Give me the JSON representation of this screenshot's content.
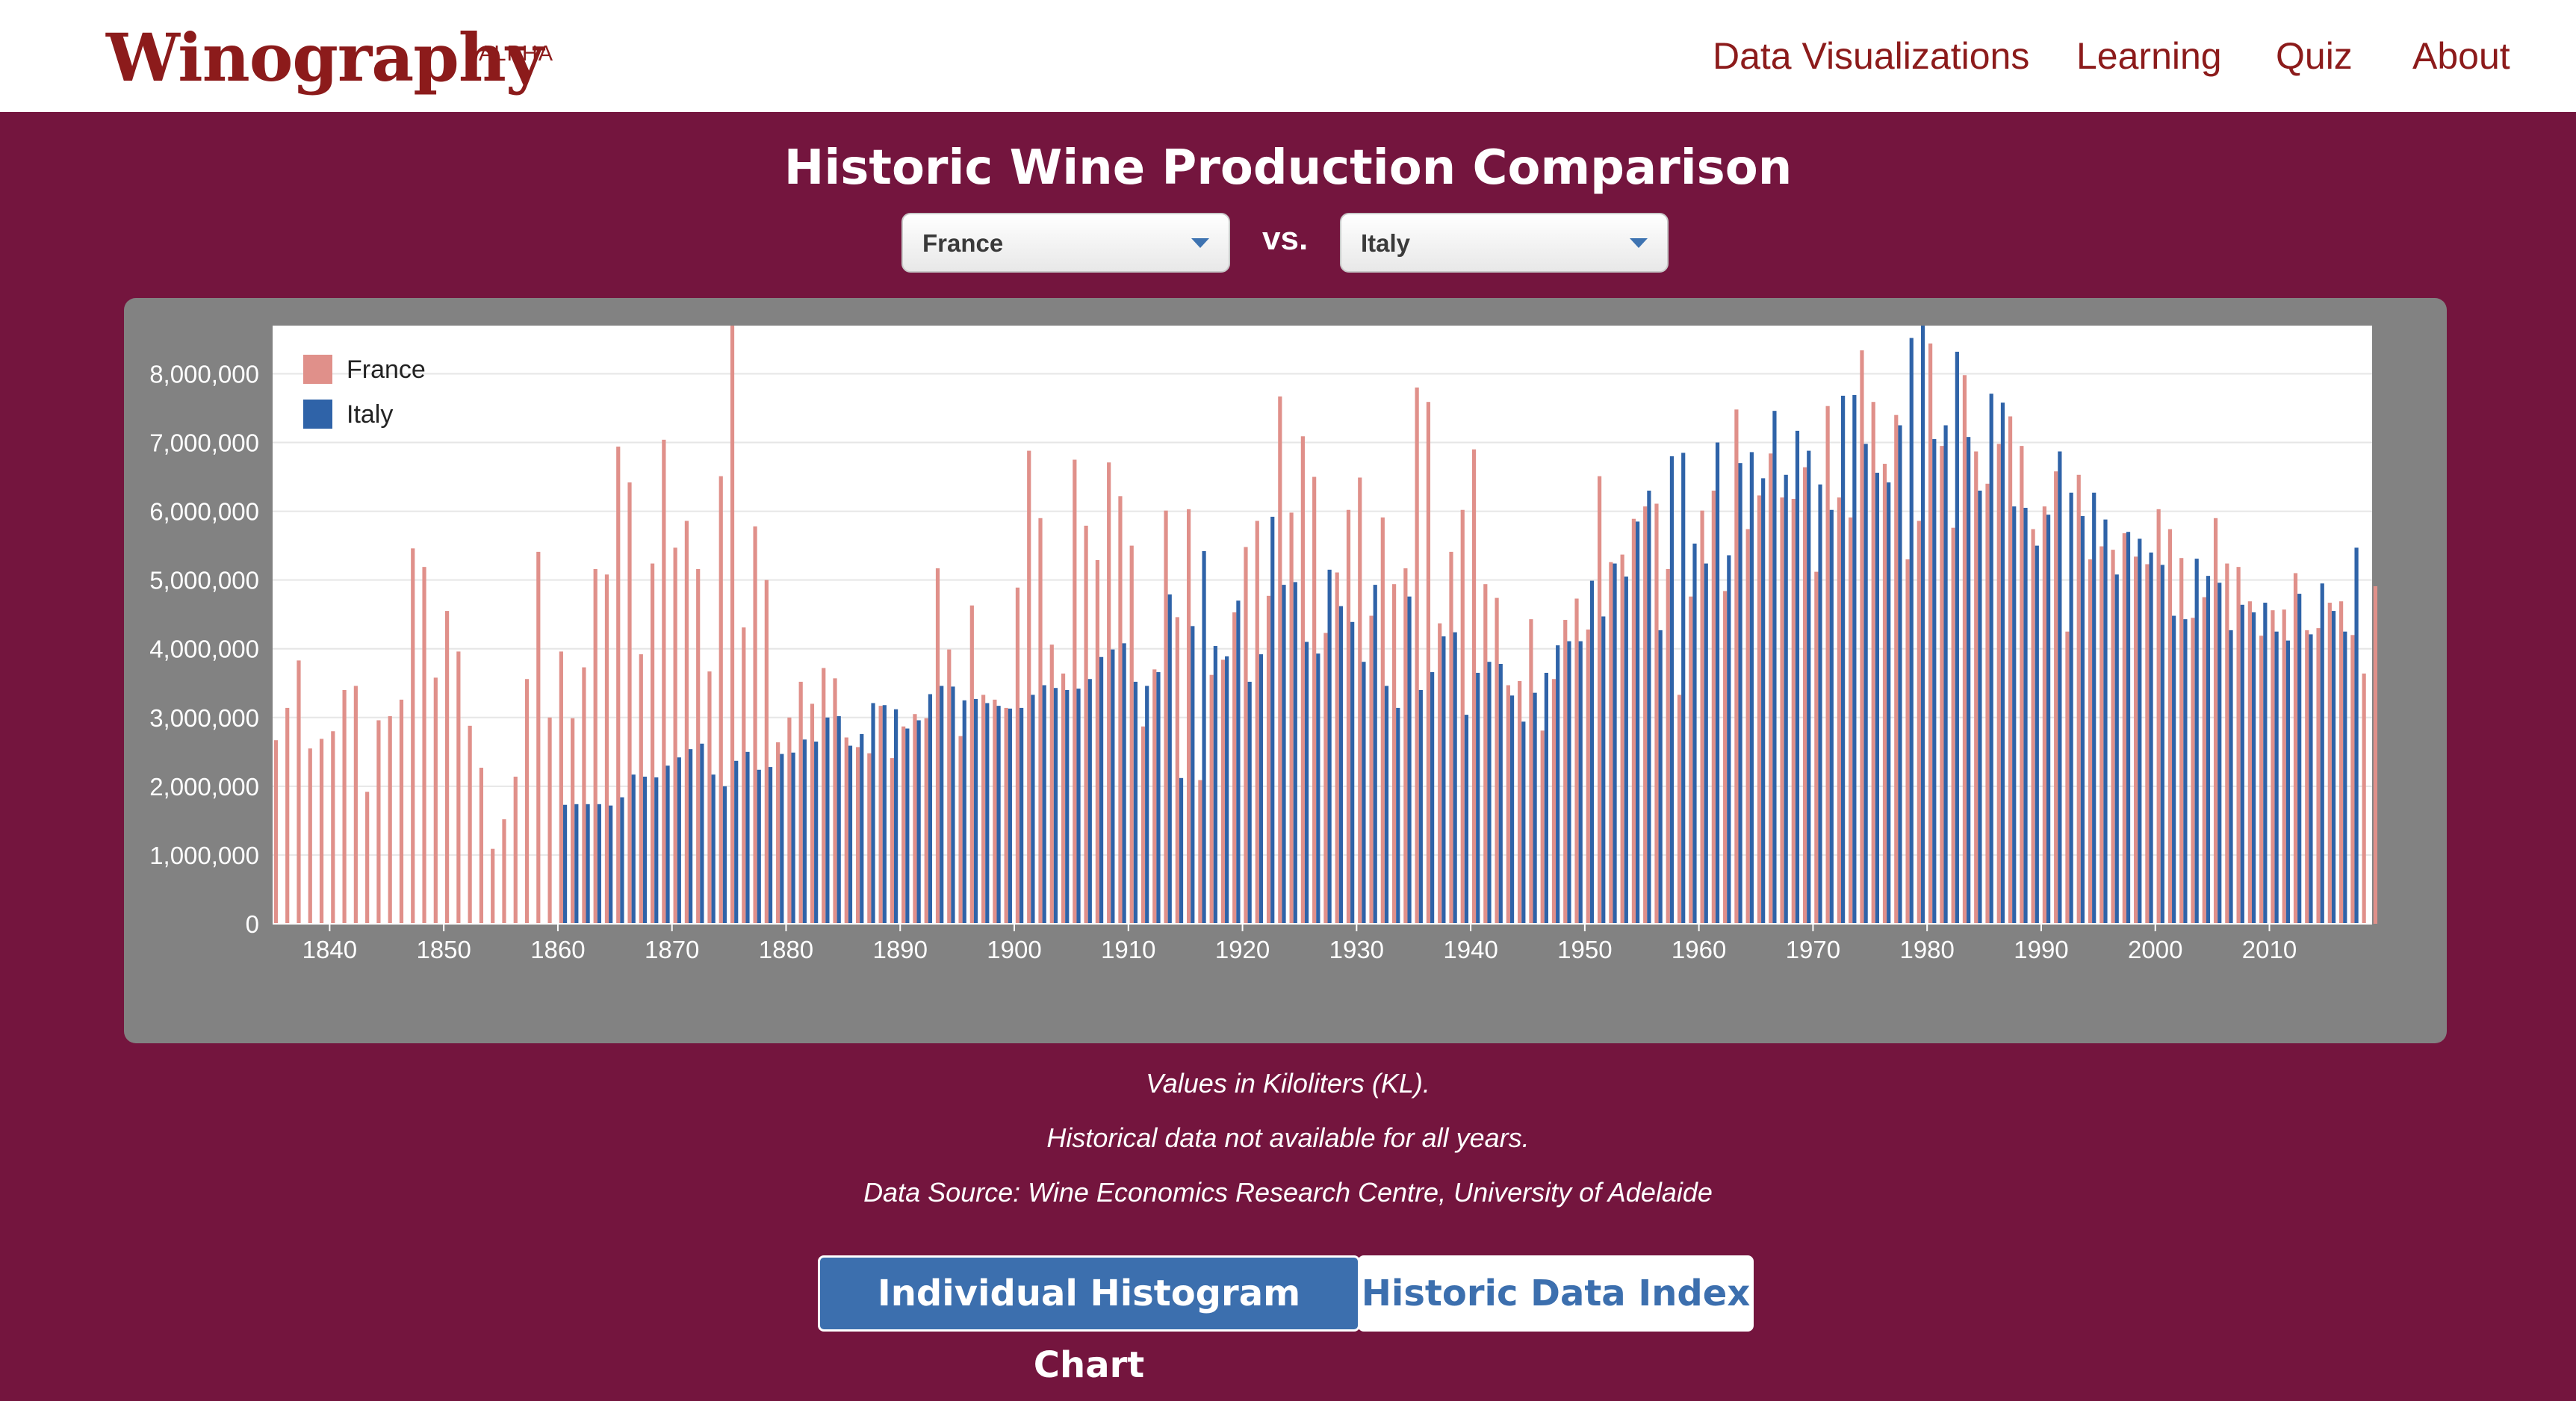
{
  "navbar": {
    "brand": "Winography",
    "brand_tag": "ALPHA",
    "links": [
      "Data Visualizations",
      "Learning",
      "Quiz",
      "About"
    ]
  },
  "page": {
    "title": "Historic Wine Production Comparison",
    "vs_label": "vs.",
    "select_left": "France",
    "select_right": "Italy"
  },
  "notes": {
    "units": "Values in Kiloliters (KL).",
    "availability": "Historical data not available for all years.",
    "source": "Data Source: Wine Economics Research Centre, University of Adelaide"
  },
  "buttons": {
    "histogram": "Individual Histogram Chart",
    "index": "Historic Data Index"
  },
  "colors": {
    "background": "#74153e",
    "brand": "#8c1b1b",
    "france": "#e0908a",
    "italy": "#2f63a8",
    "button_primary": "#3c6fae"
  },
  "chart_data": {
    "type": "bar",
    "xlim": [
      1835,
      2019
    ],
    "ylim": [
      0,
      8700000
    ],
    "y_ticks": [
      0,
      1000000,
      2000000,
      3000000,
      4000000,
      5000000,
      6000000,
      7000000,
      8000000
    ],
    "y_tick_labels": [
      "0",
      "1,000,000",
      "2,000,000",
      "3,000,000",
      "4,000,000",
      "5,000,000",
      "6,000,000",
      "7,000,000",
      "8,000,000"
    ],
    "x_ticks": [
      1840,
      1850,
      1860,
      1870,
      1880,
      1890,
      1900,
      1910,
      1920,
      1930,
      1940,
      1950,
      1960,
      1970,
      1980,
      1990,
      2000,
      2010
    ],
    "x_tick_labels": [
      "1840",
      "1850",
      "1860",
      "1870",
      "1880",
      "1890",
      "1900",
      "1910",
      "1920",
      "1930",
      "1940",
      "1950",
      "1960",
      "1970",
      "1980",
      "1990",
      "2000",
      "2010"
    ],
    "legend_position": "top-left",
    "grid": true,
    "series": [
      {
        "name": "France",
        "color": "#e0908a",
        "start_year": 1835,
        "values": [
          2670000,
          3140000,
          3830000,
          2550000,
          2690000,
          2800000,
          3400000,
          3460000,
          1920000,
          2960000,
          3020000,
          3260000,
          5460000,
          5190000,
          3580000,
          4550000,
          3960000,
          2880000,
          2270000,
          1090000,
          1520000,
          2140000,
          3560000,
          5410000,
          3000000,
          3960000,
          2990000,
          3730000,
          5160000,
          5080000,
          6940000,
          6420000,
          3920000,
          5240000,
          7040000,
          5470000,
          5860000,
          5160000,
          3670000,
          6510000,
          8700000,
          4310000,
          5780000,
          5000000,
          2640000,
          3000000,
          3520000,
          3200000,
          3720000,
          3570000,
          2710000,
          2570000,
          2480000,
          3170000,
          2410000,
          2870000,
          3050000,
          2990000,
          5170000,
          3990000,
          2730000,
          4630000,
          3330000,
          3260000,
          3140000,
          4890000,
          6880000,
          5900000,
          4060000,
          3640000,
          6750000,
          5790000,
          5290000,
          6710000,
          6220000,
          5500000,
          2870000,
          3700000,
          6010000,
          4460000,
          6030000,
          2090000,
          3620000,
          3840000,
          4530000,
          5480000,
          5860000,
          4770000,
          7670000,
          5980000,
          7090000,
          6500000,
          4230000,
          5110000,
          6020000,
          6490000,
          4480000,
          5910000,
          4940000,
          5170000,
          7800000,
          7590000,
          4370000,
          5410000,
          6020000,
          6900000,
          4940000,
          4740000,
          3470000,
          3530000,
          4430000,
          2810000,
          3560000,
          4420000,
          4730000,
          4280000,
          6510000,
          5260000,
          5370000,
          5890000,
          6070000,
          6110000,
          5160000,
          3330000,
          4760000,
          6010000,
          6300000,
          4840000,
          7480000,
          5740000,
          6230000,
          6840000,
          6200000,
          6180000,
          6640000,
          5120000,
          7530000,
          6200000,
          5910000,
          8340000,
          7590000,
          6690000,
          7400000,
          5300000,
          5860000,
          8440000,
          6950000,
          5760000,
          7980000,
          6870000,
          6400000,
          6980000,
          7380000,
          6950000,
          5740000,
          6070000,
          6580000,
          4250000,
          6530000,
          5300000,
          5490000,
          5440000,
          5680000,
          5340000,
          5230000,
          6030000,
          5740000,
          5320000,
          4450000,
          4750000,
          5900000,
          5240000,
          5190000,
          4690000,
          4190000,
          4560000,
          4570000,
          5100000,
          4270000,
          4300000,
          4670000,
          4690000,
          4200000,
          3640000,
          4910000
        ]
      },
      {
        "name": "Italy",
        "color": "#2f63a8",
        "start_year": 1860,
        "values": [
          1730000,
          1740000,
          1740000,
          1740000,
          1720000,
          1840000,
          2170000,
          2140000,
          2130000,
          2300000,
          2420000,
          2540000,
          2620000,
          2170000,
          2000000,
          2370000,
          2500000,
          2240000,
          2280000,
          2470000,
          2490000,
          2680000,
          2650000,
          3000000,
          3020000,
          2590000,
          2760000,
          3210000,
          3180000,
          3120000,
          2840000,
          2960000,
          3340000,
          3460000,
          3450000,
          3250000,
          3270000,
          3210000,
          3170000,
          3130000,
          3140000,
          3330000,
          3470000,
          3430000,
          3400000,
          3420000,
          3560000,
          3880000,
          3990000,
          4080000,
          3520000,
          3460000,
          3660000,
          4790000,
          2120000,
          4330000,
          5420000,
          4040000,
          3890000,
          4700000,
          3520000,
          3920000,
          5920000,
          4930000,
          4970000,
          4100000,
          3930000,
          5150000,
          4620000,
          4390000,
          3810000,
          4930000,
          3460000,
          3140000,
          4760000,
          3400000,
          3660000,
          4180000,
          4240000,
          3040000,
          3650000,
          3810000,
          3780000,
          3320000,
          2940000,
          3360000,
          3650000,
          4050000,
          4110000,
          4110000,
          4990000,
          4470000,
          5240000,
          5050000,
          5850000,
          6300000,
          4270000,
          6800000,
          6850000,
          5530000,
          5240000,
          7000000,
          5360000,
          6700000,
          6860000,
          6480000,
          7460000,
          6530000,
          7170000,
          6880000,
          6390000,
          6020000,
          7680000,
          7690000,
          6980000,
          6560000,
          6420000,
          7250000,
          8520000,
          8700000,
          7050000,
          7250000,
          8320000,
          7080000,
          6300000,
          7710000,
          7580000,
          6070000,
          6050000,
          5500000,
          5950000,
          6870000,
          6270000,
          5930000,
          6270000,
          5880000,
          5080000,
          5700000,
          5600000,
          5400000,
          5220000,
          4480000,
          4430000,
          5310000,
          5060000,
          4960000,
          4270000,
          4640000,
          4530000,
          4670000,
          4250000,
          4120000,
          4800000,
          4210000,
          4950000,
          4550000,
          4250000,
          5470000
        ]
      }
    ]
  }
}
